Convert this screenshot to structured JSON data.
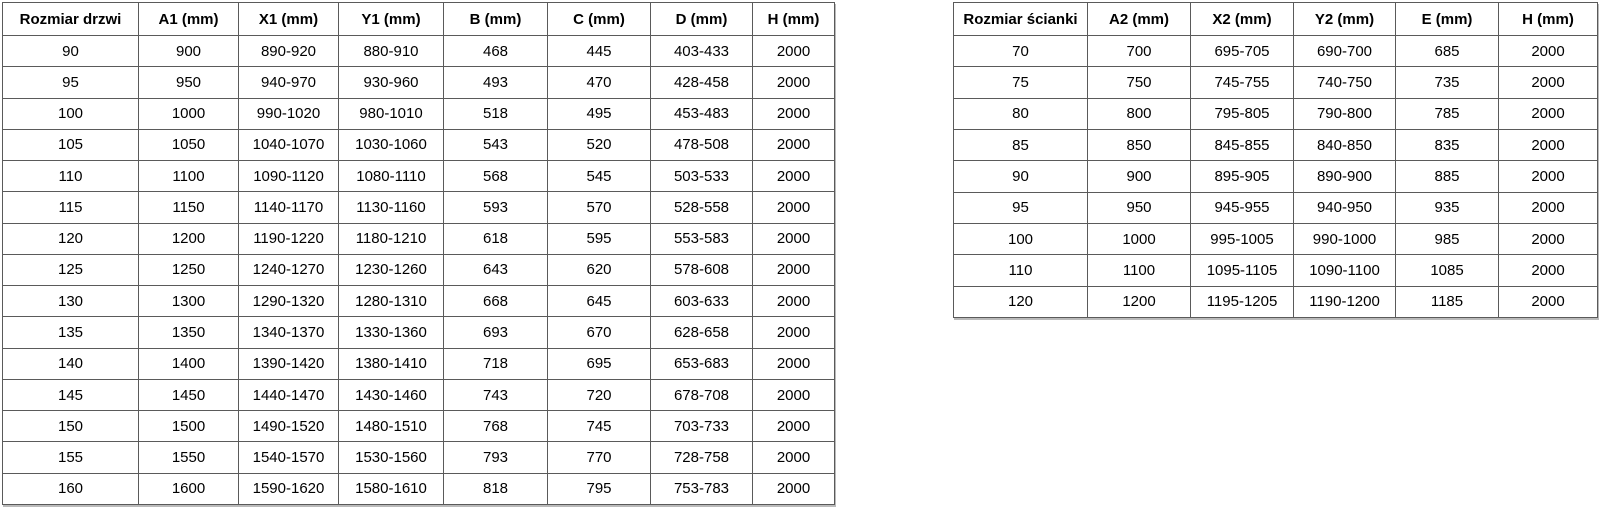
{
  "colors": {
    "background": "#ffffff",
    "border": "#5a5a5a",
    "text": "#000000"
  },
  "tables": {
    "doors": {
      "headers": [
        "Rozmiar drzwi",
        "A1 (mm)",
        "X1 (mm)",
        "Y1 (mm)",
        "B (mm)",
        "C (mm)",
        "D (mm)",
        "H (mm)"
      ],
      "rows": [
        [
          "90",
          "900",
          "890-920",
          "880-910",
          "468",
          "445",
          "403-433",
          "2000"
        ],
        [
          "95",
          "950",
          "940-970",
          "930-960",
          "493",
          "470",
          "428-458",
          "2000"
        ],
        [
          "100",
          "1000",
          "990-1020",
          "980-1010",
          "518",
          "495",
          "453-483",
          "2000"
        ],
        [
          "105",
          "1050",
          "1040-1070",
          "1030-1060",
          "543",
          "520",
          "478-508",
          "2000"
        ],
        [
          "110",
          "1100",
          "1090-1120",
          "1080-1110",
          "568",
          "545",
          "503-533",
          "2000"
        ],
        [
          "115",
          "1150",
          "1140-1170",
          "1130-1160",
          "593",
          "570",
          "528-558",
          "2000"
        ],
        [
          "120",
          "1200",
          "1190-1220",
          "1180-1210",
          "618",
          "595",
          "553-583",
          "2000"
        ],
        [
          "125",
          "1250",
          "1240-1270",
          "1230-1260",
          "643",
          "620",
          "578-608",
          "2000"
        ],
        [
          "130",
          "1300",
          "1290-1320",
          "1280-1310",
          "668",
          "645",
          "603-633",
          "2000"
        ],
        [
          "135",
          "1350",
          "1340-1370",
          "1330-1360",
          "693",
          "670",
          "628-658",
          "2000"
        ],
        [
          "140",
          "1400",
          "1390-1420",
          "1380-1410",
          "718",
          "695",
          "653-683",
          "2000"
        ],
        [
          "145",
          "1450",
          "1440-1470",
          "1430-1460",
          "743",
          "720",
          "678-708",
          "2000"
        ],
        [
          "150",
          "1500",
          "1490-1520",
          "1480-1510",
          "768",
          "745",
          "703-733",
          "2000"
        ],
        [
          "155",
          "1550",
          "1540-1570",
          "1530-1560",
          "793",
          "770",
          "728-758",
          "2000"
        ],
        [
          "160",
          "1600",
          "1590-1620",
          "1580-1610",
          "818",
          "795",
          "753-783",
          "2000"
        ]
      ]
    },
    "walls": {
      "headers": [
        "Rozmiar ścianki",
        "A2 (mm)",
        "X2 (mm)",
        "Y2 (mm)",
        "E (mm)",
        "H (mm)"
      ],
      "rows": [
        [
          "70",
          "700",
          "695-705",
          "690-700",
          "685",
          "2000"
        ],
        [
          "75",
          "750",
          "745-755",
          "740-750",
          "735",
          "2000"
        ],
        [
          "80",
          "800",
          "795-805",
          "790-800",
          "785",
          "2000"
        ],
        [
          "85",
          "850",
          "845-855",
          "840-850",
          "835",
          "2000"
        ],
        [
          "90",
          "900",
          "895-905",
          "890-900",
          "885",
          "2000"
        ],
        [
          "95",
          "950",
          "945-955",
          "940-950",
          "935",
          "2000"
        ],
        [
          "100",
          "1000",
          "995-1005",
          "990-1000",
          "985",
          "2000"
        ],
        [
          "110",
          "1100",
          "1095-1105",
          "1090-1100",
          "1085",
          "2000"
        ],
        [
          "120",
          "1200",
          "1195-1205",
          "1190-1200",
          "1185",
          "2000"
        ]
      ]
    }
  }
}
